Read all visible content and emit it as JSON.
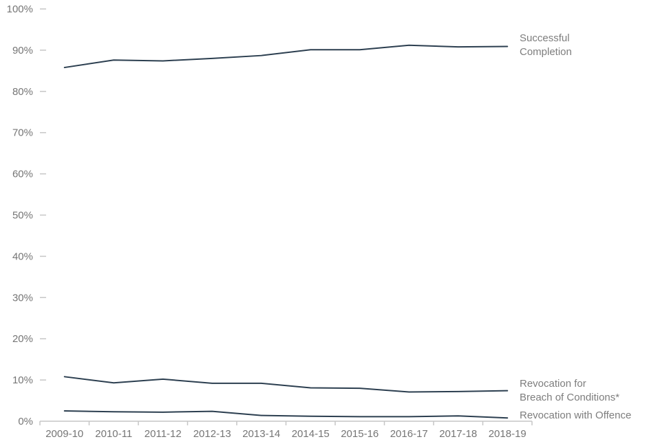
{
  "chart_data": {
    "type": "line",
    "title": "",
    "xlabel": "",
    "ylabel": "",
    "categories": [
      "2009-10",
      "2010-11",
      "2011-12",
      "2012-13",
      "2013-14",
      "2014-15",
      "2015-16",
      "2016-17",
      "2017-18",
      "2018-19"
    ],
    "series": [
      {
        "name": "Successful Completion",
        "label": "Successful\nCompletion",
        "values": [
          85.8,
          87.6,
          87.4,
          88.0,
          88.7,
          90.1,
          90.1,
          91.2,
          90.8,
          90.9
        ]
      },
      {
        "name": "Revocation for Breach of Conditions*",
        "label": "Revocation for\nBreach of Conditions*",
        "values": [
          10.8,
          9.3,
          10.2,
          9.2,
          9.2,
          8.1,
          8.0,
          7.1,
          7.2,
          7.4
        ]
      },
      {
        "name": "Revocation with Offence",
        "label": "Revocation with Offence",
        "values": [
          2.5,
          2.3,
          2.2,
          2.4,
          1.4,
          1.2,
          1.1,
          1.1,
          1.3,
          0.8
        ]
      }
    ],
    "ylim": [
      0,
      100
    ],
    "ytick_step": 10,
    "ytick_labels": [
      "0%",
      "10%",
      "20%",
      "30%",
      "40%",
      "50%",
      "60%",
      "70%",
      "80%",
      "90%",
      "100%"
    ],
    "grid": false,
    "legend_position": "right-of-line-end",
    "colors": {
      "line": "#2b3e4f",
      "axis": "#c6c6c6",
      "axis_label": "#757575",
      "series_label": "#7d7d7d",
      "background": "#ffffff"
    }
  }
}
